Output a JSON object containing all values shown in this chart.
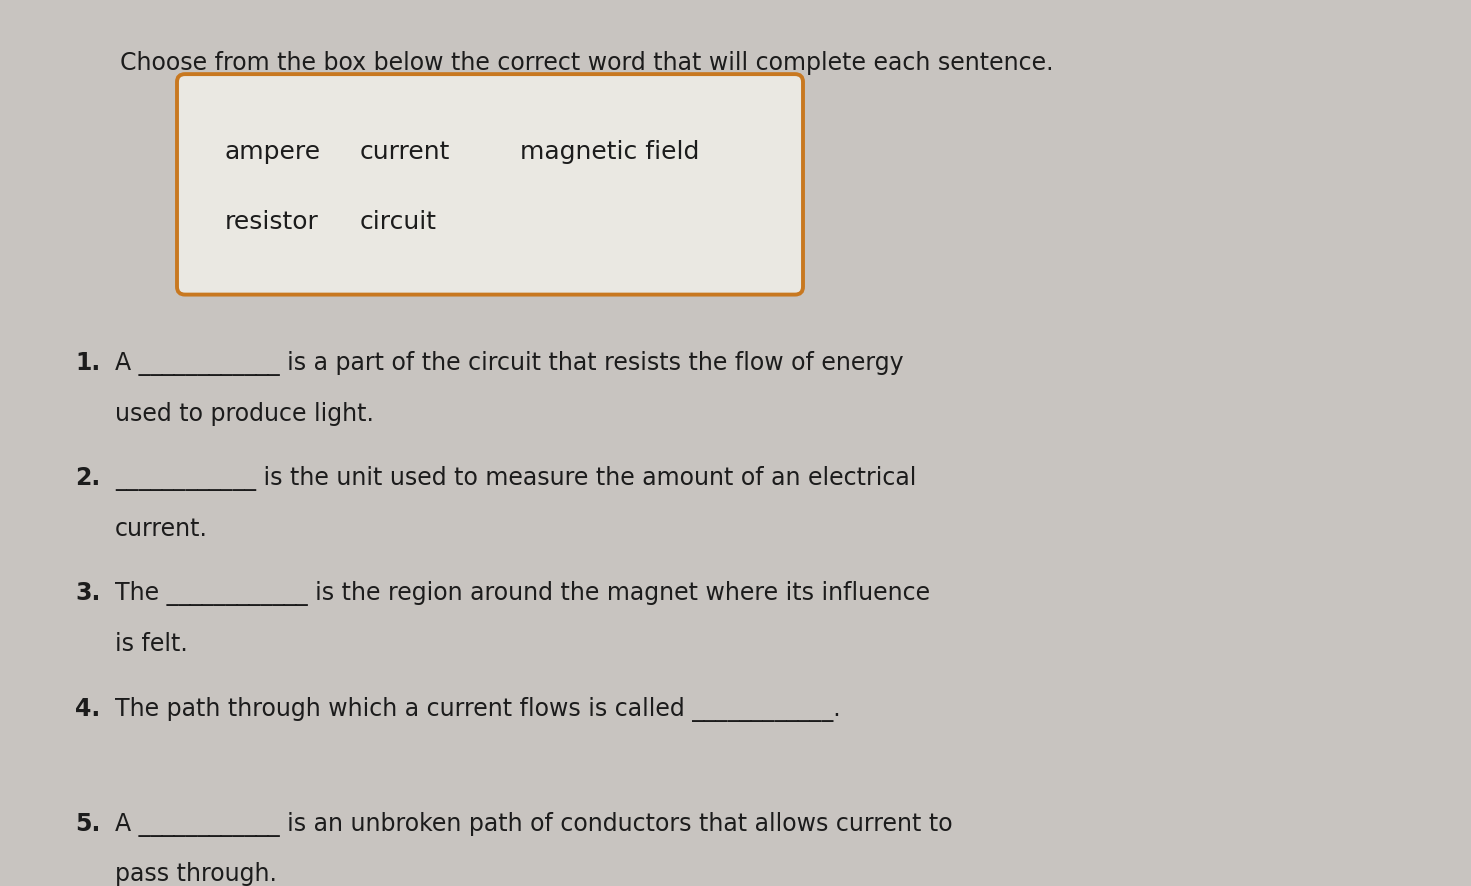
{
  "bg_color": "#c8c4c0",
  "paper_color": "#e0ddd8",
  "title": "Choose from the box below the correct word that will complete each sentence.",
  "title_fontsize": 17,
  "box_words_line1": [
    "ampere",
    "current",
    "magnetic field"
  ],
  "box_words_line2": [
    "resistor",
    "circuit"
  ],
  "box_edgecolor": "#c87820",
  "box_facecolor": "#eae8e2",
  "word_fontsize": 18,
  "sentences": [
    {
      "num": "1.",
      "line1": "A ____________ is a part of the circuit that resists the flow of energy",
      "line2": "used to produce light."
    },
    {
      "num": "2.",
      "line1": "____________ is the unit used to measure the amount of an electrical",
      "line2": "current."
    },
    {
      "num": "3.",
      "line1": "The ____________ is the region around the magnet where its influence",
      "line2": "is felt."
    },
    {
      "num": "4.",
      "line1": "The path through which a current flows is called ____________.",
      "line2": null
    },
    {
      "num": "5.",
      "line1": "A ____________ is an unbroken path of conductors that allows current to",
      "line2": "pass through."
    }
  ],
  "sentence_fontsize": 17,
  "text_color": "#1c1c1c",
  "dark_text_color": "#111111"
}
